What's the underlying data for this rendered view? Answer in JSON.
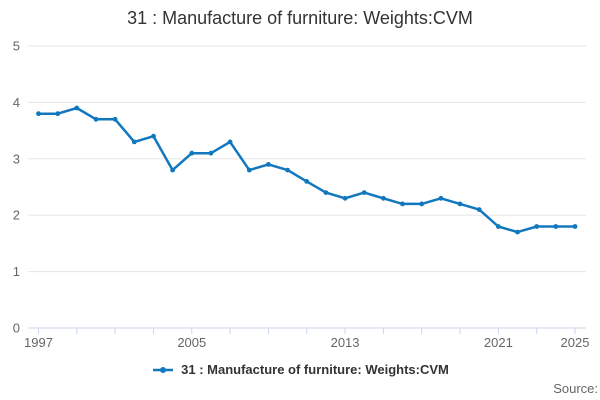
{
  "chart_data": {
    "type": "line",
    "title": "31 : Manufacture of furniture: Weights:CVM",
    "xlabel": "",
    "ylabel": "",
    "x": [
      1997,
      1998,
      1999,
      2000,
      2001,
      2002,
      2003,
      2004,
      2005,
      2006,
      2007,
      2008,
      2009,
      2010,
      2011,
      2012,
      2013,
      2014,
      2015,
      2016,
      2017,
      2018,
      2019,
      2020,
      2021,
      2022,
      2023,
      2024,
      2025
    ],
    "series": [
      {
        "name": "31 : Manufacture of furniture: Weights:CVM",
        "color": "#1178be",
        "values": [
          3.8,
          3.8,
          3.9,
          3.7,
          3.7,
          3.3,
          3.4,
          2.8,
          3.1,
          3.1,
          3.3,
          2.8,
          2.9,
          2.8,
          2.6,
          2.4,
          2.3,
          2.4,
          2.3,
          2.2,
          2.2,
          2.3,
          2.2,
          2.1,
          1.8,
          1.7,
          1.8,
          1.8,
          1.8
        ]
      }
    ],
    "ylim": [
      0,
      5
    ],
    "yticks": [
      0,
      1,
      2,
      3,
      4,
      5
    ],
    "xticks_labeled": [
      1997,
      2005,
      2013,
      2021,
      2025
    ],
    "xtick_interval": 2,
    "grid": "horizontal",
    "legend_position": "bottom"
  },
  "legend": {
    "label": "31 : Manufacture of furniture: Weights:CVM"
  },
  "source_label": "Source:",
  "colors": {
    "series": "#1178be",
    "grid_line": "#e6e6e6",
    "axis_line": "#ccd6eb",
    "tick_label": "#666666",
    "title_text": "#333333",
    "legend_text": "#333333",
    "source_text": "#666666",
    "background": "#ffffff"
  }
}
